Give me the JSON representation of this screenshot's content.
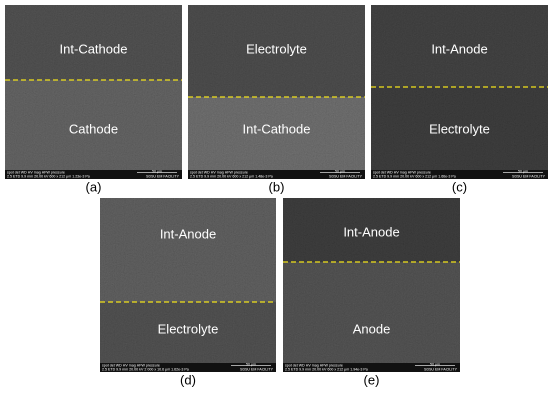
{
  "panels": [
    {
      "caption": "(a)",
      "top_label": "Int-Cathode",
      "bottom_label": "Cathode",
      "info_header": "spot  det   WD   HV   mag  HFW  pressure",
      "info_values": "2.5  ETD  9.9 mm  20.00 kV  600 x  212 μm  1.23e-3 Pa",
      "scale": "50 μm",
      "facility": "SDSU EM FACILITY"
    },
    {
      "caption": "(b)",
      "top_label": "Electrolyte",
      "bottom_label": "Int-Cathode",
      "info_header": "spot  det   WD   HV   mag  HFW  pressure",
      "info_values": "2.5  ETD  9.9 mm  20.00 kV  600 x  212 μm  1.48e-3 Pa",
      "scale": "50 μm",
      "facility": "SDSU EM FACILITY"
    },
    {
      "caption": "(c)",
      "top_label": "Int-Anode",
      "bottom_label": "Electrolyte",
      "info_header": "spot  det   WD   HV   mag  HFW  pressure",
      "info_values": "2.5  ETD  9.9 mm  20.00 kV  600 x  212 μm  1.66e-3 Pa",
      "scale": "50 μm",
      "facility": "SDSU EM FACILITY"
    },
    {
      "caption": "(d)",
      "top_label": "Int-Anode",
      "bottom_label": "Electrolyte",
      "info_header": "spot  det   WD   HV   mag  HFW  pressure",
      "info_values": "2.5  ETD  9.9 mm  20.00 kV  2 000 x  10.6 μm  1.62e-3 Pa",
      "scale": "50 μm",
      "facility": "SDSU EM FACILITY"
    },
    {
      "caption": "(e)",
      "top_label": "Int-Anode",
      "bottom_label": "Anode",
      "info_header": "spot  det   WD   HV   mag  HFW  pressure",
      "info_values": "2.5  ETD  9.9 mm  20.00 kV  600 x  212 μm  1.94e-3 Pa",
      "scale": "50 μm",
      "facility": "SDSU EM FACILITY"
    }
  ]
}
